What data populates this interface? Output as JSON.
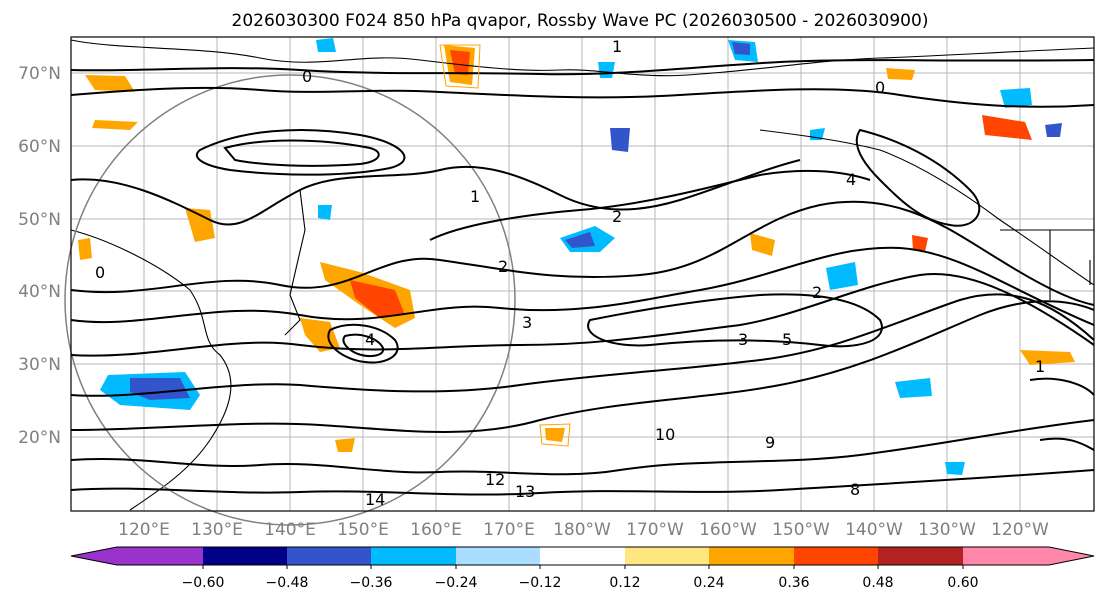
{
  "title": "2026030300 F024 850 hPa qvapor, Rossby Wave PC (2026030500 - 2026030900)",
  "lat_labels": [
    "70°N",
    "60°N",
    "50°N",
    "40°N",
    "30°N",
    "20°N"
  ],
  "lon_labels": [
    "120°E",
    "130°E",
    "140°E",
    "150°E",
    "160°E",
    "170°E",
    "180°W",
    "170°W",
    "160°W",
    "150°W",
    "140°W",
    "130°W",
    "120°W"
  ],
  "contour_labels": [
    "0",
    "1",
    "2",
    "3",
    "4",
    "5",
    "0",
    "1",
    "2",
    "3",
    "10",
    "12",
    "13",
    "14",
    "9",
    "8"
  ],
  "colorbar": {
    "colors": [
      "#9933cc",
      "#000088",
      "#3355cc",
      "#00bbff",
      "#aaddff",
      "#ffffff",
      "#ffe680",
      "#ffa500",
      "#ff4500",
      "#b22222",
      "#ff88aa"
    ],
    "tick_labels": [
      "−0.60",
      "−0.48",
      "−0.36",
      "−0.24",
      "−0.12",
      "0.12",
      "0.24",
      "0.36",
      "0.48",
      "0.60"
    ]
  },
  "colors": {
    "orange": "#ffa500",
    "light_orange": "#ffd070",
    "red": "#ff4500",
    "blue": "#00bbff",
    "navy": "#3355cc",
    "contour": "#000000",
    "grid": "#888888"
  }
}
